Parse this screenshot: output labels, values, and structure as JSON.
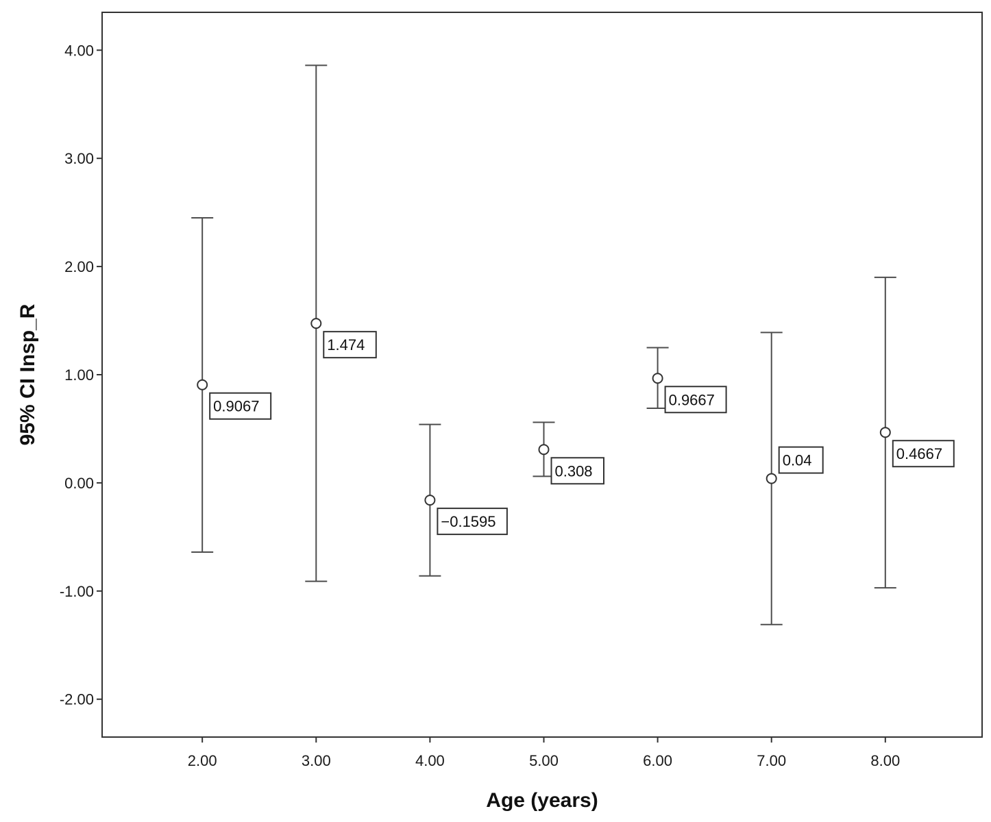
{
  "chart_data": {
    "type": "errorbar",
    "title": "",
    "xlabel": "Age (years)",
    "ylabel": "95% CI Insp_R",
    "xlim": [
      1.12,
      8.85
    ],
    "ylim": [
      -2.35,
      4.35
    ],
    "xticks": [
      2,
      3,
      4,
      5,
      6,
      7,
      8
    ],
    "xtick_labels": [
      "2.00",
      "3.00",
      "4.00",
      "5.00",
      "6.00",
      "7.00",
      "8.00"
    ],
    "yticks": [
      -2,
      -1,
      0,
      1,
      2,
      3,
      4
    ],
    "ytick_labels": [
      "-2.00",
      "-1.00",
      "0.00",
      "1.00",
      "2.00",
      "3.00",
      "4.00"
    ],
    "grid": false,
    "legend": "none",
    "colors": {
      "axis": "#333333",
      "errorbar": "#4d4d4d",
      "marker": "#333333",
      "label_border": "#333333"
    },
    "points": [
      {
        "x": 2,
        "mean": 0.9067,
        "lower": -0.64,
        "upper": 2.45,
        "label": "0.9067"
      },
      {
        "x": 3,
        "mean": 1.474,
        "lower": -0.91,
        "upper": 3.86,
        "label": "1.474"
      },
      {
        "x": 4,
        "mean": -0.1595,
        "lower": -0.86,
        "upper": 0.54,
        "label": "−0.1595"
      },
      {
        "x": 5,
        "mean": 0.308,
        "lower": 0.06,
        "upper": 0.56,
        "label": "0.308"
      },
      {
        "x": 6,
        "mean": 0.9667,
        "lower": 0.69,
        "upper": 1.25,
        "label": "0.9667"
      },
      {
        "x": 7,
        "mean": 0.04,
        "lower": -1.31,
        "upper": 1.39,
        "label": "0.04"
      },
      {
        "x": 8,
        "mean": 0.4667,
        "lower": -0.97,
        "upper": 1.9,
        "label": "0.4667"
      }
    ]
  }
}
